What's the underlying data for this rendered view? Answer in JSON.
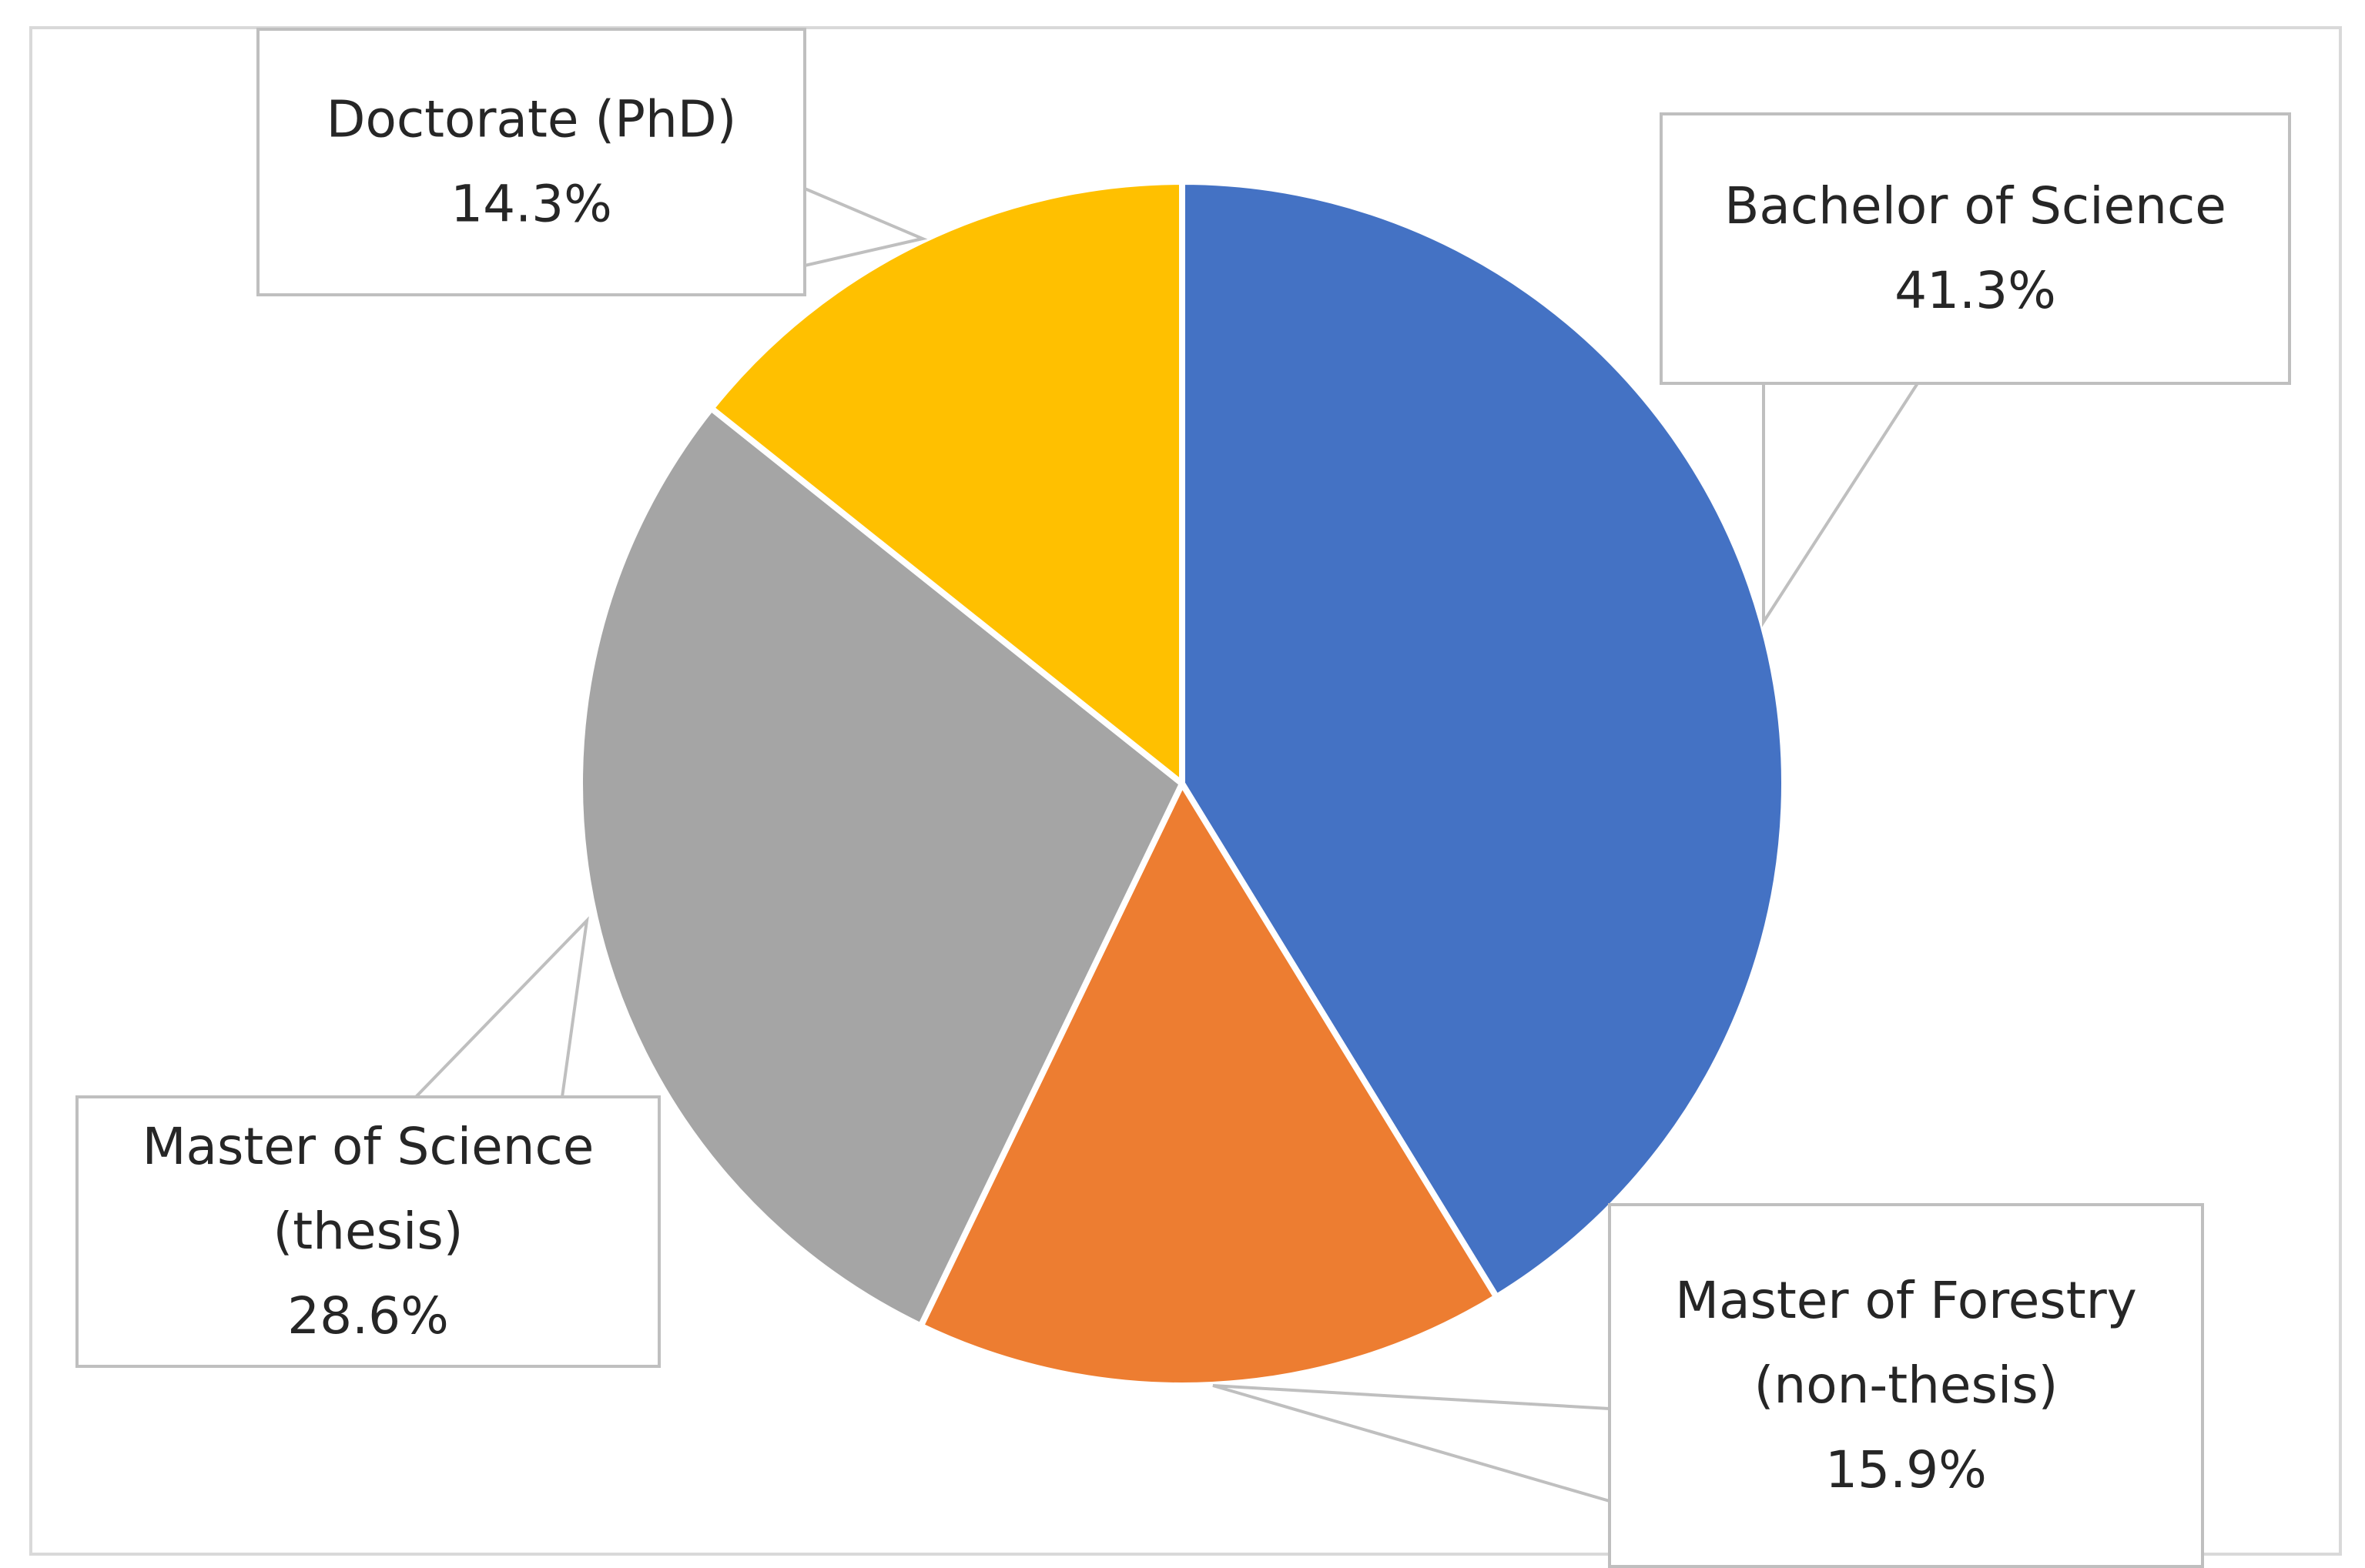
{
  "chart_data": {
    "type": "pie",
    "title": "",
    "slices": [
      {
        "name": "Bachelor of Science",
        "label_lines": [
          "Bachelor of Science"
        ],
        "value": 41.3,
        "value_label": "41.3%",
        "color": "#4472C4"
      },
      {
        "name": "Master of Forestry (non-thesis)",
        "label_lines": [
          "Master of Forestry",
          "(non-thesis)"
        ],
        "value": 15.9,
        "value_label": "15.9%",
        "color": "#ED7D31"
      },
      {
        "name": "Master of Science (thesis)",
        "label_lines": [
          "Master of Science",
          "(thesis)"
        ],
        "value": 28.6,
        "value_label": "28.6%",
        "color": "#A5A5A5"
      },
      {
        "name": "Doctorate (PhD)",
        "label_lines": [
          "Doctorate (PhD)"
        ],
        "value": 14.3,
        "value_label": "14.3%",
        "color": "#FFC000"
      }
    ],
    "start_angle": "12 o'clock",
    "direction": "clockwise",
    "data_labels": "callouts",
    "legend": "none"
  }
}
